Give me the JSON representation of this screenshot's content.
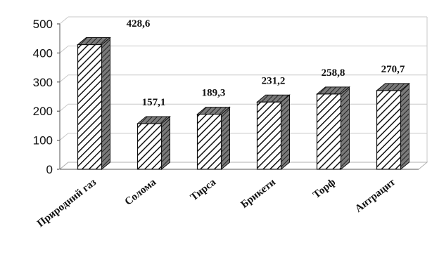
{
  "chart_data": {
    "type": "bar",
    "categories": [
      "Природний газ",
      "Солома",
      "Тирса",
      "Брикети",
      "Торф",
      "Антрацит"
    ],
    "values": [
      428.6,
      157.1,
      189.3,
      231.2,
      258.8,
      270.7
    ],
    "value_labels": [
      "428,6",
      "157,1",
      "189,3",
      "231,2",
      "258,8",
      "270,7"
    ],
    "ylim": [
      0,
      500
    ],
    "yticks": [
      "0",
      "100",
      "200",
      "300",
      "400",
      "500"
    ],
    "grid": true,
    "style": "3d-hatched",
    "bar_fill": "#ffffff",
    "bar_stroke": "#111111",
    "side_color": "#555555",
    "top_color": "#8a8a8a"
  }
}
